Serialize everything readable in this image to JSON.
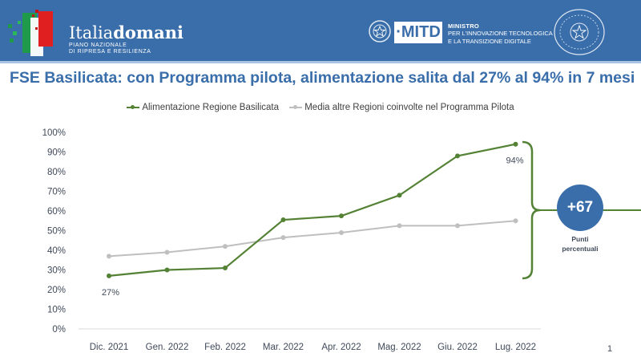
{
  "header": {
    "brand_light": "Italia",
    "brand_bold": "domani",
    "brand_sub_line1": "PIANO NAZIONALE",
    "brand_sub_line2": "DI RIPRESA E RESILIENZA",
    "ministry_badge": "·MITD",
    "ministry_title": "MINISTRO",
    "ministry_line1": "PER L'INNOVAZIONE TECNOLOGICA",
    "ministry_line2": "E LA TRANSIZIONE DIGITALE"
  },
  "colors": {
    "header_bg": "#3a6eaa",
    "accent": "#3a6eaa",
    "series_primary": "#548235",
    "series_secondary": "#bfbfbf"
  },
  "callout": {
    "value": "+67",
    "caption_line1": "Punti",
    "caption_line2": "percentuali"
  },
  "page_number": "1",
  "chart_data": {
    "type": "line",
    "title": "FSE Basilicata: con Programma pilota, alimentazione salita dal 27% al 94% in 7 mesi",
    "xlabel": "",
    "ylabel": "",
    "categories": [
      "Dic. 2021",
      "Gen. 2022",
      "Feb. 2022",
      "Mar. 2022",
      "Apr. 2022",
      "Mag. 2022",
      "Giu. 2022",
      "Lug. 2022"
    ],
    "ylim": [
      0,
      100
    ],
    "yticks": [
      "0%",
      "10%",
      "20%",
      "30%",
      "40%",
      "50%",
      "60%",
      "70%",
      "80%",
      "90%",
      "100%"
    ],
    "grid": false,
    "legend_position": "top-center",
    "series": [
      {
        "name": "Alimentazione Regione Basilicata",
        "color": "#548235",
        "values": [
          27,
          30,
          31,
          55.5,
          57.5,
          68,
          88,
          94
        ]
      },
      {
        "name": "Media altre Regioni coinvolte nel Programma Pilota",
        "color": "#bfbfbf",
        "values": [
          37,
          39,
          42,
          46.5,
          49,
          52.5,
          52.5,
          55
        ]
      }
    ],
    "annotations": [
      {
        "series": 0,
        "index": 0,
        "text": "27%"
      },
      {
        "series": 0,
        "index": 7,
        "text": "94%"
      }
    ]
  }
}
